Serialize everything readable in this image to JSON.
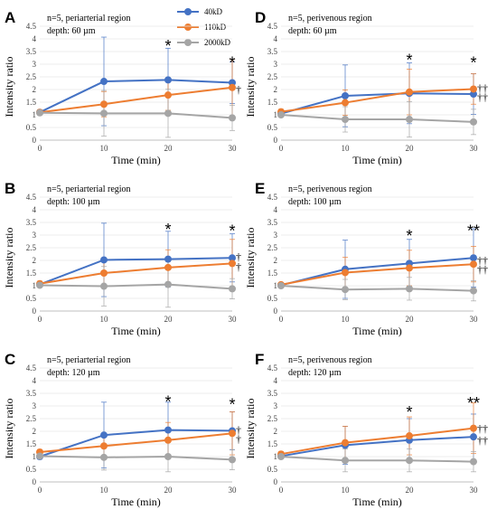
{
  "legend": {
    "items": [
      {
        "label": "40kD",
        "color": "#4472C4"
      },
      {
        "label": "110kD",
        "color": "#ED7D31"
      },
      {
        "label": "2000kD",
        "color": "#A5A5A5"
      }
    ]
  },
  "chart_data": [
    {
      "type": "line",
      "panel_letter": "A",
      "annotation_line1": "n=5, periarterial region",
      "annotation_line2": "depth: 60 µm",
      "xlabel": "Time (min)",
      "ylabel": "Intensity ratio",
      "x": [
        0,
        10,
        20,
        30
      ],
      "xlim": [
        0,
        30
      ],
      "ylim": [
        0,
        4.5
      ],
      "ytick_step": 0.5,
      "series": [
        {
          "name": "40kD",
          "color": "#4472C4",
          "values": [
            1.1,
            2.32,
            2.38,
            2.27
          ],
          "err": [
            0.1,
            1.75,
            1.25,
            0.82
          ]
        },
        {
          "name": "110kD",
          "color": "#ED7D31",
          "values": [
            1.1,
            1.42,
            1.78,
            2.08
          ],
          "err": [
            0.1,
            0.5,
            0.6,
            1.12
          ]
        },
        {
          "name": "2000kD",
          "color": "#A5A5A5",
          "values": [
            1.08,
            1.06,
            1.06,
            0.88
          ],
          "err": [
            0.08,
            0.9,
            0.95,
            0.5
          ]
        }
      ],
      "significance": [
        {
          "x": 20,
          "text": "*",
          "y": 3.85
        },
        {
          "x": 30,
          "text": "*",
          "y": 3.2
        },
        {
          "x": 30,
          "text": "†",
          "y": 2.0
        }
      ]
    },
    {
      "type": "line",
      "panel_letter": "D",
      "annotation_line1": "n=5, perivenous region",
      "annotation_line2": "depth: 60 µm",
      "xlabel": "Time (min)",
      "ylabel": "Intensity ratio",
      "x": [
        0,
        10,
        20,
        30
      ],
      "xlim": [
        0,
        30
      ],
      "ylim": [
        0,
        4.5
      ],
      "ytick_step": 0.5,
      "series": [
        {
          "name": "40kD",
          "color": "#4472C4",
          "values": [
            1.05,
            1.75,
            1.85,
            1.82
          ],
          "err": [
            0.1,
            1.22,
            1.2,
            0.8
          ]
        },
        {
          "name": "110kD",
          "color": "#ED7D31",
          "values": [
            1.12,
            1.48,
            1.9,
            2.02
          ],
          "err": [
            0.1,
            0.5,
            0.9,
            0.6
          ]
        },
        {
          "name": "2000kD",
          "color": "#A5A5A5",
          "values": [
            1.0,
            0.82,
            0.82,
            0.72
          ],
          "err": [
            0.06,
            0.5,
            0.7,
            0.5
          ]
        }
      ],
      "significance": [
        {
          "x": 20,
          "text": "*",
          "y": 3.3
        },
        {
          "x": 30,
          "text": "*",
          "y": 3.2
        },
        {
          "x": 30,
          "text": "††",
          "y": 2.05
        },
        {
          "x": 30,
          "text": "††",
          "y": 1.7
        }
      ]
    },
    {
      "type": "line",
      "panel_letter": "B",
      "annotation_line1": "n=5, periarterial region",
      "annotation_line2": "depth: 100 µm",
      "xlabel": "Time (min)",
      "ylabel": "Intensity ratio",
      "x": [
        0,
        10,
        20,
        30
      ],
      "xlim": [
        0,
        30
      ],
      "ylim": [
        0,
        4.5
      ],
      "ytick_step": 0.5,
      "series": [
        {
          "name": "40kD",
          "color": "#4472C4",
          "values": [
            1.05,
            2.02,
            2.05,
            2.1
          ],
          "err": [
            0.1,
            1.45,
            1.1,
            0.95
          ]
        },
        {
          "name": "110kD",
          "color": "#ED7D31",
          "values": [
            1.08,
            1.5,
            1.72,
            1.88
          ],
          "err": [
            0.1,
            0.5,
            0.7,
            0.95
          ]
        },
        {
          "name": "2000kD",
          "color": "#A5A5A5",
          "values": [
            1.02,
            0.98,
            1.05,
            0.88
          ],
          "err": [
            0.06,
            0.78,
            0.9,
            0.4
          ]
        }
      ],
      "significance": [
        {
          "x": 20,
          "text": "*",
          "y": 3.35
        },
        {
          "x": 30,
          "text": "*",
          "y": 3.3
        },
        {
          "x": 30,
          "text": "†",
          "y": 2.15
        },
        {
          "x": 30,
          "text": "†",
          "y": 1.75
        }
      ]
    },
    {
      "type": "line",
      "panel_letter": "E",
      "annotation_line1": "n=5, perivenous region",
      "annotation_line2": "depth: 100 µm",
      "xlabel": "Time (min)",
      "ylabel": "Intensity ratio",
      "x": [
        0,
        10,
        20,
        30
      ],
      "xlim": [
        0,
        30
      ],
      "ylim": [
        0,
        4.5
      ],
      "ytick_step": 0.5,
      "series": [
        {
          "name": "40kD",
          "color": "#4472C4",
          "values": [
            1.02,
            1.65,
            1.88,
            2.1
          ],
          "err": [
            0.08,
            1.15,
            0.95,
            1.15
          ]
        },
        {
          "name": "110kD",
          "color": "#ED7D31",
          "values": [
            1.04,
            1.52,
            1.7,
            1.85
          ],
          "err": [
            0.08,
            0.6,
            0.7,
            0.7
          ]
        },
        {
          "name": "2000kD",
          "color": "#A5A5A5",
          "values": [
            1.0,
            0.85,
            0.88,
            0.8
          ],
          "err": [
            0.06,
            0.4,
            0.45,
            0.4
          ]
        }
      ],
      "significance": [
        {
          "x": 20,
          "text": "*",
          "y": 3.1
        },
        {
          "x": 30,
          "text": "**",
          "y": 3.3
        },
        {
          "x": 30,
          "text": "††",
          "y": 2.0
        },
        {
          "x": 30,
          "text": "††",
          "y": 1.65
        }
      ]
    },
    {
      "type": "line",
      "panel_letter": "C",
      "annotation_line1": "n=5, periarterial region",
      "annotation_line2": "depth: 120 µm",
      "xlabel": "Time (min)",
      "ylabel": "Intensity ratio",
      "x": [
        0,
        10,
        20,
        30
      ],
      "xlim": [
        0,
        30
      ],
      "ylim": [
        0,
        4.5
      ],
      "ytick_step": 0.5,
      "series": [
        {
          "name": "40kD",
          "color": "#4472C4",
          "values": [
            1.0,
            1.85,
            2.05,
            2.02
          ],
          "err": [
            0.1,
            1.3,
            1.1,
            0.75
          ]
        },
        {
          "name": "110kD",
          "color": "#ED7D31",
          "values": [
            1.18,
            1.42,
            1.65,
            1.92
          ],
          "err": [
            0.1,
            0.5,
            0.7,
            0.85
          ]
        },
        {
          "name": "2000kD",
          "color": "#A5A5A5",
          "values": [
            1.02,
            0.97,
            1.0,
            0.88
          ],
          "err": [
            0.06,
            0.5,
            0.6,
            0.4
          ]
        }
      ],
      "significance": [
        {
          "x": 20,
          "text": "*",
          "y": 3.3
        },
        {
          "x": 30,
          "text": "*",
          "y": 3.2
        },
        {
          "x": 30,
          "text": "†",
          "y": 2.05
        },
        {
          "x": 30,
          "text": "†",
          "y": 1.7
        }
      ]
    },
    {
      "type": "line",
      "panel_letter": "F",
      "annotation_line1": "n=5, perivenous region",
      "annotation_line2": "depth: 120 µm",
      "xlabel": "Time (min)",
      "ylabel": "Intensity ratio",
      "x": [
        0,
        10,
        20,
        30
      ],
      "xlim": [
        0,
        30
      ],
      "ylim": [
        0,
        4.5
      ],
      "ytick_step": 0.5,
      "series": [
        {
          "name": "40kD",
          "color": "#4472C4",
          "values": [
            1.02,
            1.45,
            1.65,
            1.78
          ],
          "err": [
            0.08,
            0.75,
            0.85,
            0.9
          ]
        },
        {
          "name": "110kD",
          "color": "#ED7D31",
          "values": [
            1.1,
            1.55,
            1.82,
            2.12
          ],
          "err": [
            0.1,
            0.65,
            0.75,
            1.0
          ]
        },
        {
          "name": "2000kD",
          "color": "#A5A5A5",
          "values": [
            1.0,
            0.85,
            0.85,
            0.8
          ],
          "err": [
            0.06,
            0.45,
            0.45,
            0.4
          ]
        }
      ],
      "significance": [
        {
          "x": 20,
          "text": "*",
          "y": 2.9
        },
        {
          "x": 30,
          "text": "**",
          "y": 3.25
        },
        {
          "x": 30,
          "text": "††",
          "y": 2.1
        },
        {
          "x": 30,
          "text": "††",
          "y": 1.65
        }
      ]
    }
  ]
}
